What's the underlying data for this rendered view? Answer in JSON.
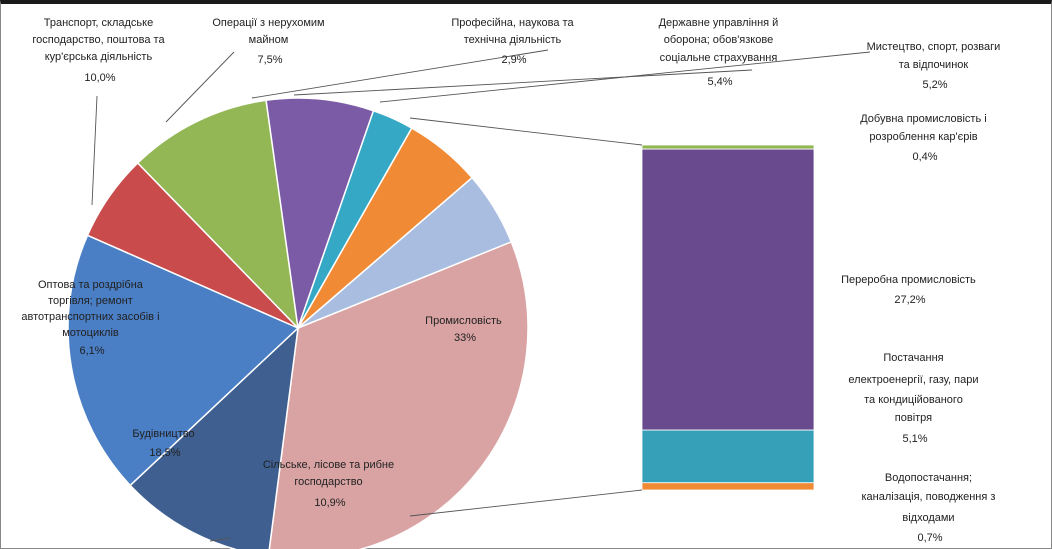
{
  "chart_data": {
    "type": "bar-of-pie",
    "pie": [
      {
        "label": "Промисловість",
        "display": "33%",
        "value": 33.0,
        "color": "#d9a3a3"
      },
      {
        "label": "Сільське, лісове та рибне господарство",
        "display": "10,9%",
        "value": 10.9,
        "color": "#3e5f8f"
      },
      {
        "label": "Будівництво",
        "display": "18,5%",
        "value": 18.5,
        "color": "#4a7ec5"
      },
      {
        "label": "Оптова та роздрібна торгівля; ремонт автотранспортних засобів і мотоциклів",
        "display": "6,1%",
        "value": 6.1,
        "color": "#c94b4b"
      },
      {
        "label": "Транспорт, складське господарство, поштова та кур'єрська діяльність",
        "display": "10,0%",
        "value": 10.0,
        "color": "#93b755"
      },
      {
        "label": "Операції з нерухомим майном",
        "display": "7,5%",
        "value": 7.5,
        "color": "#7b5aa6"
      },
      {
        "label": "Професійна, наукова та технічна діяльність",
        "display": "2,9%",
        "value": 2.9,
        "color": "#35a8c5"
      },
      {
        "label": "Державне управління й оборона; обов'язкове соціальне страхування",
        "display": "5,4%",
        "value": 5.4,
        "color": "#f08a35"
      },
      {
        "label": "Мистецтво, спорт, розваги та відпочинок",
        "display": "5,2%",
        "value": 5.2,
        "color": "#a9bde0"
      }
    ],
    "bar": [
      {
        "label": "Добувна промисловість і розроблення кар'єрів",
        "display": "0,4%",
        "value": 0.4,
        "color": "#93b755"
      },
      {
        "label": "Переробна промисловість",
        "display": "27,2%",
        "value": 27.2,
        "color": "#6a4a8f"
      },
      {
        "label": "Постачання електроенергії, газу, пари та кондиційованого повітря",
        "display": "5,1%",
        "value": 5.1,
        "color": "#35a0b8"
      },
      {
        "label": "Водопостачання; каналізація, поводження з відходами",
        "display": "0,7%",
        "value": 0.7,
        "color": "#f08a35"
      }
    ]
  },
  "labels": {
    "promyslovist": [
      "Промисловість",
      "33%"
    ],
    "silske": [
      "Сільське, лісове та рибне",
      "господарство",
      "10,9%"
    ],
    "budivnytstvo": [
      "Будівництво",
      "18,5%"
    ],
    "torgivlia": [
      "Оптова та роздрібна",
      "торгівля; ремонт",
      "автотранспортних засобів і",
      "мотоциклів",
      "6,1%"
    ],
    "transport": [
      "Транспорт, складське",
      "господарство, поштова та",
      "кур'єрська діяльність",
      "10,0%"
    ],
    "nerukhomist": [
      "Операції з нерухомим",
      "майном",
      "7,5%"
    ],
    "profesiina": [
      "Професійна, наукова та",
      "технічна діяльність",
      "2,9%"
    ],
    "derzhavne": [
      "Державне управління й",
      "оборона; обов'язкове",
      "соціальне страхування",
      "5,4%"
    ],
    "mystetstvo": [
      "Мистецтво, спорт, розваги",
      "та відпочинок",
      "5,2%"
    ],
    "dobuvna": [
      "Добувна промисловість і",
      "розроблення кар'єрів",
      "0,4%"
    ],
    "pererobna": [
      "Переробна промисловість",
      "27,2%"
    ],
    "postachannia": [
      "Постачання",
      "електроенергії, газу, пари",
      "та кондиційованого",
      "повітря",
      "5,1%"
    ],
    "vodopostachannia": [
      "Водопостачання;",
      "каналізація, поводження з",
      "відходами",
      "0,7%"
    ]
  }
}
